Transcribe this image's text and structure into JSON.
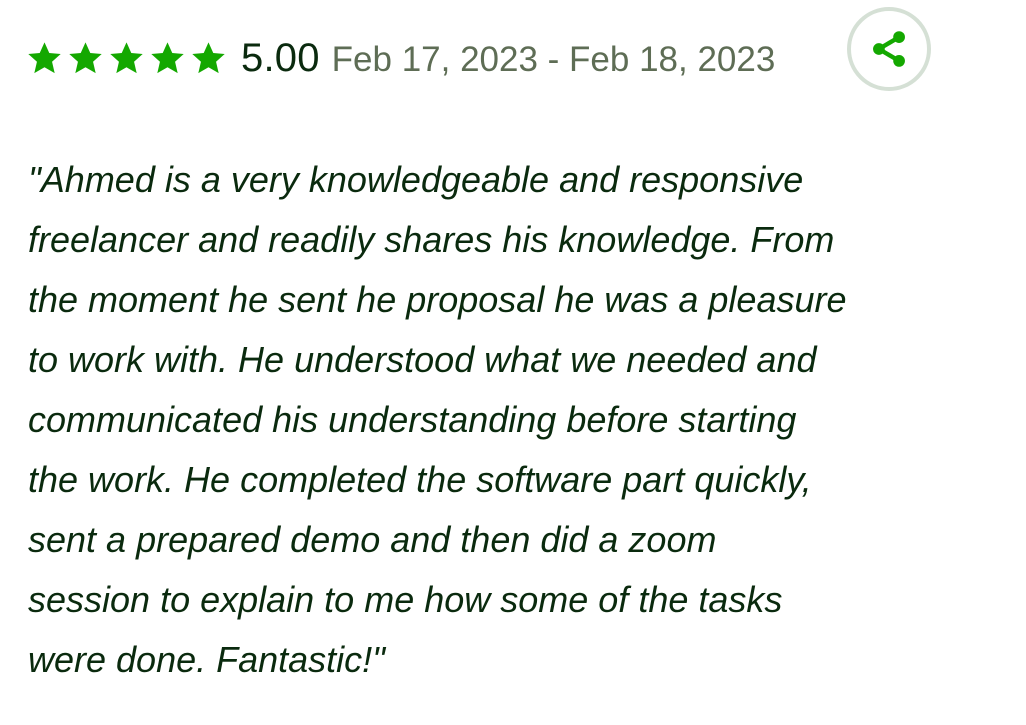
{
  "review": {
    "rating": {
      "value": "5.00",
      "stars_filled": 5,
      "stars_total": 5,
      "star_icon": "star-icon",
      "star_color": "#14a800"
    },
    "date_range": "Feb 17, 2023 - Feb 18, 2023",
    "share": {
      "icon": "share-icon",
      "icon_color": "#14a800",
      "border_color": "#d5e0d5"
    },
    "text_lines": [
      "\"Ahmed is a very knowledgeable and responsive",
      "freelancer and readily shares his knowledge. From",
      "the moment he sent he proposal he was a pleasure",
      "to work with. He understood what we needed and",
      "communicated his understanding before starting",
      "the work. He completed the software part quickly,",
      "sent a prepared demo and then did a zoom",
      "session to explain to me how some of the tasks",
      "were done. Fantastic!\""
    ],
    "text_color": "#0a2a0e"
  }
}
